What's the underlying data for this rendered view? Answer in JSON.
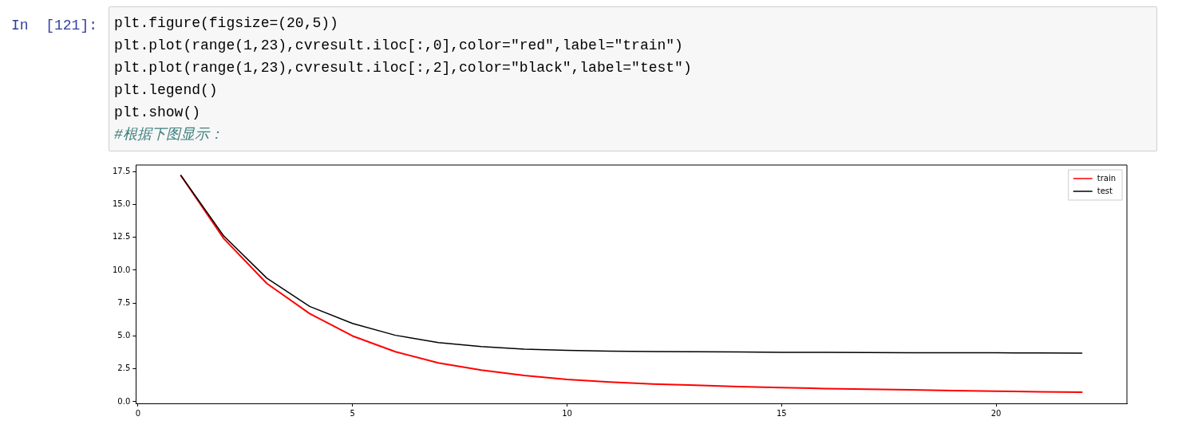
{
  "chart_data": {
    "type": "line",
    "annotations": [
      "In  [121]:",
      "plt.figure(figsize=(20,5))",
      "plt.plot(range(1,23),cvresult.iloc[:,0],color=\"red\",label=\"train\")",
      "plt.plot(range(1,23),cvresult.iloc[:,2],color=\"black\",label=\"test\")",
      "plt.legend()",
      "plt.show()",
      "#根据下图显示："
    ],
    "x": [
      1,
      2,
      3,
      4,
      5,
      6,
      7,
      8,
      9,
      10,
      11,
      12,
      13,
      14,
      15,
      16,
      17,
      18,
      19,
      20,
      21,
      22
    ],
    "series": [
      {
        "name": "train",
        "color": "#ff0000",
        "values": [
          17.2,
          12.4,
          9.0,
          6.7,
          5.0,
          3.8,
          2.95,
          2.4,
          2.0,
          1.7,
          1.5,
          1.35,
          1.25,
          1.15,
          1.07,
          1.0,
          0.95,
          0.9,
          0.85,
          0.8,
          0.76,
          0.72
        ]
      },
      {
        "name": "test",
        "color": "#000000",
        "values": [
          17.2,
          12.6,
          9.4,
          7.25,
          5.95,
          5.05,
          4.5,
          4.2,
          4.0,
          3.9,
          3.85,
          3.82,
          3.8,
          3.78,
          3.76,
          3.75,
          3.74,
          3.73,
          3.72,
          3.72,
          3.71,
          3.7
        ]
      }
    ],
    "xlim": [
      -0.05,
      23.05
    ],
    "xticks": [
      0,
      5,
      10,
      15,
      20
    ],
    "ylim": [
      -0.125,
      18.0
    ],
    "yticks": [
      {
        "value": 0,
        "label": "0.0"
      },
      {
        "value": 2.5,
        "label": "2.5"
      },
      {
        "value": 5,
        "label": "5.0"
      },
      {
        "value": 7.5,
        "label": "7.5"
      },
      {
        "value": 10,
        "label": "10.0"
      },
      {
        "value": 12.5,
        "label": "12.5"
      },
      {
        "value": 15,
        "label": "15.0"
      },
      {
        "value": 17.5,
        "label": "17.5"
      }
    ],
    "grid": false,
    "legend": "top right",
    "marker": "none",
    "line_style": "solid"
  }
}
